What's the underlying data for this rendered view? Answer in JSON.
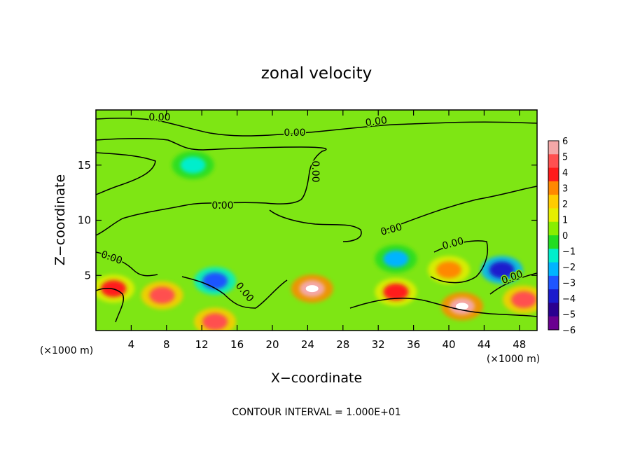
{
  "chart_data": {
    "type": "heatmap",
    "title": "zonal velocity",
    "xlabel": "X−coordinate",
    "ylabel": "Z−coordinate",
    "x_unit_left": "(×1000 m)",
    "x_unit_right": "(×1000 m)",
    "footer": "CONTOUR INTERVAL = 1.000E+01",
    "xlim": [
      0,
      50
    ],
    "ylim": [
      0,
      20
    ],
    "x_ticks": [
      4,
      8,
      12,
      16,
      20,
      24,
      28,
      32,
      36,
      40,
      44,
      48
    ],
    "y_ticks": [
      5,
      10,
      15
    ],
    "colorbar": {
      "ticks": [
        6,
        5,
        4,
        3,
        2,
        1,
        0,
        -1,
        -2,
        -3,
        -4,
        -5,
        -6
      ],
      "colors": [
        "#f4a8a8",
        "#ff5050",
        "#ff1a1a",
        "#ff8800",
        "#ffcc00",
        "#e6ee00",
        "#88ee00",
        "#22dd22",
        "#00eecc",
        "#00b4ff",
        "#1f55ff",
        "#1a1acd",
        "#2a0090",
        "#6a0090"
      ]
    },
    "contour_labels": [
      "0.00",
      "0.00",
      "0.00",
      "0.00",
      "0.00",
      "0.00",
      "0.00",
      "0.00",
      "0.00",
      "0.00"
    ],
    "features": [
      {
        "x": 24.5,
        "z": 3.8,
        "value": 6
      },
      {
        "x": 7.5,
        "z": 3.2,
        "value": 5
      },
      {
        "x": 13.5,
        "z": 0.8,
        "value": 5
      },
      {
        "x": 41.5,
        "z": 2.2,
        "value": 6
      },
      {
        "x": 48.5,
        "z": 2.8,
        "value": 5
      },
      {
        "x": 46.0,
        "z": 5.5,
        "value": -5
      },
      {
        "x": 13.5,
        "z": 4.5,
        "value": -4
      },
      {
        "x": 2.0,
        "z": 3.8,
        "value": 4
      },
      {
        "x": 11.0,
        "z": 15.0,
        "value": -2
      },
      {
        "x": 34.0,
        "z": 6.5,
        "value": -3
      },
      {
        "x": 34.0,
        "z": 3.5,
        "value": 4
      },
      {
        "x": 40.0,
        "z": 5.5,
        "value": 3
      }
    ]
  }
}
